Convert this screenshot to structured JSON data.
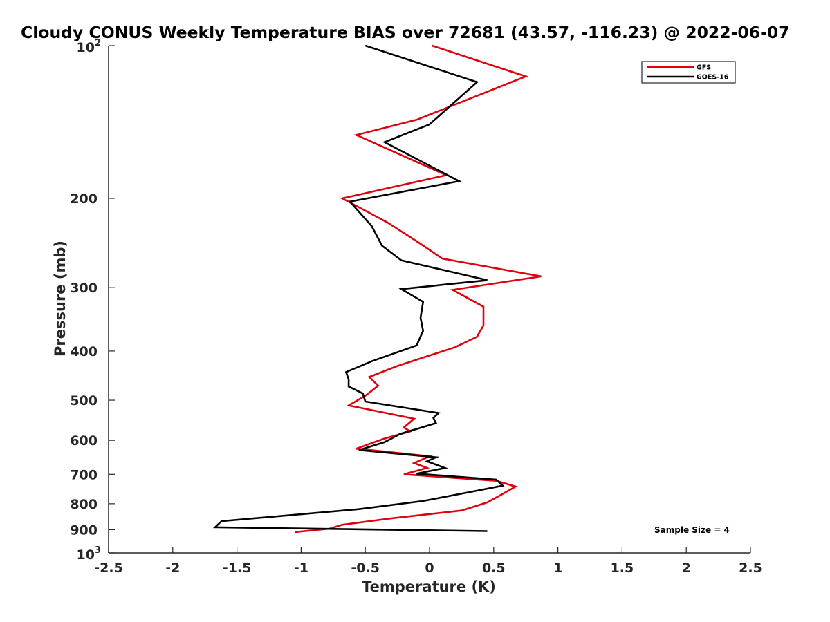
{
  "chart_data": {
    "type": "line",
    "title": "Cloudy CONUS Weekly Temperature BIAS over 72681 (43.57, -116.23) @ 2022-06-07",
    "xlabel": "Temperature (K)",
    "ylabel": "Pressure (mb)",
    "xlim": [
      -2.5,
      2.5
    ],
    "ylim": [
      100,
      1000
    ],
    "y_scale": "log",
    "y_reversed": true,
    "grid": false,
    "legend_position": "top-right",
    "x_ticks": [
      -2.5,
      -2,
      -1.5,
      -1,
      -0.5,
      0,
      0.5,
      1,
      1.5,
      2,
      2.5
    ],
    "x_tick_labels": [
      "-2.5",
      "-2",
      "-1.5",
      "-1",
      "-0.5",
      "0",
      "0.5",
      "1",
      "1.5",
      "2",
      "2.5"
    ],
    "y_ticks": [
      {
        "value": 100,
        "base": "10",
        "exp": "2"
      },
      {
        "value": 200,
        "label": "200"
      },
      {
        "value": 300,
        "label": "300"
      },
      {
        "value": 400,
        "label": "400"
      },
      {
        "value": 500,
        "label": "500"
      },
      {
        "value": 600,
        "label": "600"
      },
      {
        "value": 700,
        "label": "700"
      },
      {
        "value": 800,
        "label": "800"
      },
      {
        "value": 900,
        "label": "900"
      },
      {
        "value": 1000,
        "base": "10",
        "exp": "3"
      }
    ],
    "annotation": "Sample Size = 4",
    "series": [
      {
        "name": "GFS",
        "color": "#e0000d",
        "points": [
          [
            0.02,
            100
          ],
          [
            0.75,
            115
          ],
          [
            -0.1,
            140
          ],
          [
            -0.57,
            150
          ],
          [
            0.13,
            180
          ],
          [
            -0.68,
            200
          ],
          [
            -0.33,
            223
          ],
          [
            -0.1,
            243
          ],
          [
            0.1,
            263
          ],
          [
            0.87,
            285
          ],
          [
            0.18,
            303
          ],
          [
            0.42,
            327
          ],
          [
            0.42,
            356
          ],
          [
            0.37,
            375
          ],
          [
            0.2,
            393
          ],
          [
            -0.25,
            428
          ],
          [
            -0.47,
            450
          ],
          [
            -0.4,
            468
          ],
          [
            -0.5,
            490
          ],
          [
            -0.63,
            512
          ],
          [
            -0.12,
            544
          ],
          [
            -0.2,
            566
          ],
          [
            -0.15,
            576
          ],
          [
            -0.35,
            595
          ],
          [
            -0.57,
            623
          ],
          [
            0.0,
            645
          ],
          [
            -0.12,
            665
          ],
          [
            -0.02,
            680
          ],
          [
            -0.2,
            700
          ],
          [
            0.52,
            721
          ],
          [
            0.67,
            740
          ],
          [
            0.55,
            770
          ],
          [
            0.45,
            795
          ],
          [
            0.25,
            825
          ],
          [
            -0.3,
            855
          ],
          [
            -0.68,
            880
          ],
          [
            -0.78,
            896
          ],
          [
            -1.05,
            910
          ]
        ]
      },
      {
        "name": "GOES-16",
        "color": "#000000",
        "points": [
          [
            -0.5,
            100
          ],
          [
            0.37,
            118
          ],
          [
            0.0,
            143
          ],
          [
            -0.35,
            155
          ],
          [
            0.23,
            185
          ],
          [
            -0.62,
            203
          ],
          [
            -0.45,
            227
          ],
          [
            -0.37,
            248
          ],
          [
            -0.22,
            265
          ],
          [
            0.45,
            290
          ],
          [
            -0.22,
            302
          ],
          [
            -0.05,
            320
          ],
          [
            -0.07,
            344
          ],
          [
            -0.05,
            365
          ],
          [
            -0.1,
            390
          ],
          [
            -0.45,
            419
          ],
          [
            -0.65,
            440
          ],
          [
            -0.63,
            455
          ],
          [
            -0.63,
            470
          ],
          [
            -0.52,
            485
          ],
          [
            -0.5,
            503
          ],
          [
            0.07,
            530
          ],
          [
            0.03,
            542
          ],
          [
            0.05,
            555
          ],
          [
            -0.23,
            583
          ],
          [
            -0.35,
            605
          ],
          [
            -0.55,
            627
          ],
          [
            0.05,
            648
          ],
          [
            -0.02,
            660
          ],
          [
            0.12,
            680
          ],
          [
            -0.1,
            698
          ],
          [
            0.52,
            717
          ],
          [
            0.57,
            737
          ],
          [
            0.3,
            760
          ],
          [
            -0.05,
            790
          ],
          [
            -0.55,
            820
          ],
          [
            -1.62,
            866
          ],
          [
            -1.67,
            890
          ],
          [
            0.45,
            906
          ]
        ]
      }
    ]
  }
}
